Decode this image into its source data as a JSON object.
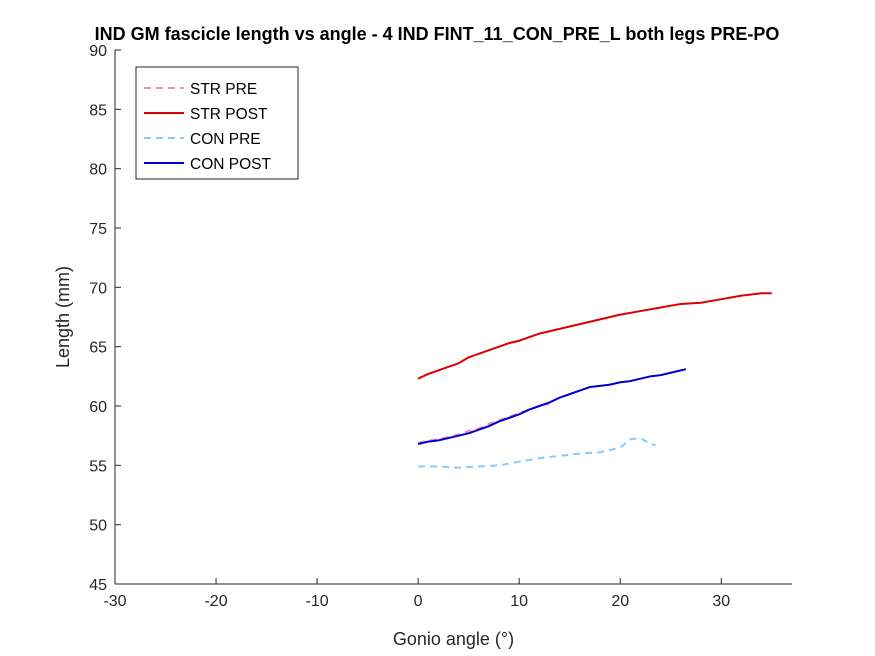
{
  "chart_data": {
    "type": "line",
    "title": "IND GM fascicle length vs angle - 4 IND FINT_11_CON_PRE_L both legs PRE-PO",
    "xlabel": "Gonio angle (°)",
    "ylabel": "Length (mm)",
    "xlim": [
      -30,
      37
    ],
    "ylim": [
      45,
      90
    ],
    "xticks": [
      -30,
      -20,
      -10,
      0,
      10,
      20,
      30
    ],
    "xtick_labels": [
      "-30",
      "-20",
      "-10",
      "0",
      "10",
      "20",
      "30"
    ],
    "yticks": [
      45,
      50,
      55,
      60,
      65,
      70,
      75,
      80,
      85,
      90
    ],
    "ytick_labels": [
      "45",
      "50",
      "55",
      "60",
      "65",
      "70",
      "75",
      "80",
      "85",
      "90"
    ],
    "grid": false,
    "legend_position": "top-left",
    "series": [
      {
        "name": "STR PRE",
        "color": "#ff88bb",
        "dash": "dashed",
        "x": [
          0,
          1,
          2,
          3,
          4,
          5,
          6,
          7,
          8,
          9,
          10,
          11,
          12,
          13
        ],
        "y": [
          56.9,
          57.1,
          57.2,
          57.4,
          57.6,
          57.9,
          58.1,
          58.5,
          58.8,
          59.1,
          59.4,
          59.7,
          60.0,
          60.2
        ]
      },
      {
        "name": "STR POST",
        "color": "#dd0000",
        "dash": "solid",
        "x": [
          0,
          1,
          2,
          3,
          4,
          5,
          6,
          7,
          8,
          9,
          10,
          12,
          14,
          16,
          18,
          20,
          22,
          24,
          26,
          28,
          30,
          32,
          34,
          35
        ],
        "y": [
          62.3,
          62.7,
          63.0,
          63.3,
          63.6,
          64.1,
          64.4,
          64.7,
          65.0,
          65.3,
          65.5,
          66.1,
          66.5,
          66.9,
          67.3,
          67.7,
          68.0,
          68.3,
          68.6,
          68.7,
          69.0,
          69.3,
          69.5,
          69.5
        ]
      },
      {
        "name": "CON PRE",
        "color": "#88ccff",
        "dash": "dashed",
        "x": [
          0,
          2,
          4,
          6,
          8,
          10,
          12,
          14,
          16,
          18,
          20,
          21,
          22,
          23,
          23.5
        ],
        "y": [
          54.9,
          54.9,
          54.8,
          54.9,
          55.0,
          55.3,
          55.6,
          55.8,
          56.0,
          56.1,
          56.5,
          57.2,
          57.3,
          56.8,
          56.7
        ]
      },
      {
        "name": "CON POST",
        "color": "#0000cc",
        "dash": "solid",
        "x": [
          0,
          1,
          2,
          3,
          4,
          5,
          6,
          7,
          8,
          9,
          10,
          11,
          12,
          13,
          14,
          15,
          16,
          17,
          18,
          19,
          20,
          21,
          22,
          23,
          24,
          25,
          26,
          26.5
        ],
        "y": [
          56.8,
          57.0,
          57.1,
          57.3,
          57.5,
          57.7,
          58.0,
          58.3,
          58.7,
          59.0,
          59.3,
          59.7,
          60.0,
          60.3,
          60.7,
          61.0,
          61.3,
          61.6,
          61.7,
          61.8,
          62.0,
          62.1,
          62.3,
          62.5,
          62.6,
          62.8,
          63.0,
          63.1
        ]
      }
    ]
  }
}
